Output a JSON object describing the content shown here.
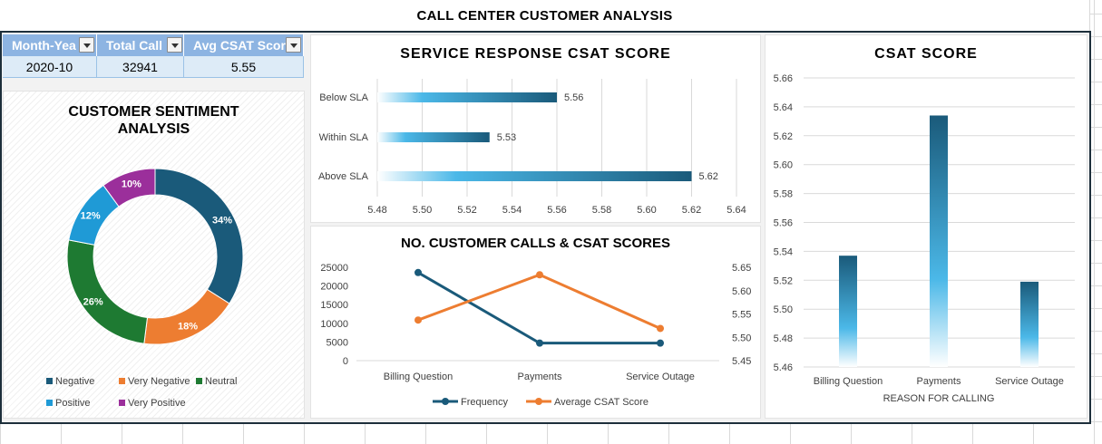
{
  "page_title": "CALL CENTER CUSTOMER ANALYSIS",
  "pivot": {
    "headers": [
      "Month-Yea",
      "Total Call",
      "Avg CSAT Scor"
    ],
    "values": [
      "2020-10",
      "32941",
      "5.55"
    ]
  },
  "colors": {
    "dark_blue": "#1a5a7a",
    "light_blue": "#3ab0e2",
    "orange": "#ed7d31",
    "green": "#1e7a32",
    "purple": "#9b2f9b",
    "frame": "#1d2f3b"
  },
  "chart_data": [
    {
      "type": "pie",
      "title": "CUSTOMER SENTIMENT ANALYSIS",
      "title_lines": [
        "CUSTOMER SENTIMENT",
        "ANALYSIS"
      ],
      "donut": true,
      "slices": [
        {
          "name": "Negative",
          "value": 34,
          "label": "34%",
          "color": "#1a5a7a"
        },
        {
          "name": "Very Negative",
          "value": 18,
          "label": "18%",
          "color": "#ed7d31"
        },
        {
          "name": "Neutral",
          "value": 26,
          "label": "26%",
          "color": "#1e7a32"
        },
        {
          "name": "Positive",
          "value": 12,
          "label": "12%",
          "color": "#1f9ad6"
        },
        {
          "name": "Very Positive",
          "value": 10,
          "label": "10%",
          "color": "#9b2f9b"
        }
      ],
      "legend": "bottom"
    },
    {
      "type": "bar",
      "orientation": "horizontal",
      "title": "SERVICE RESPONSE CSAT SCORE",
      "categories": [
        "Below SLA",
        "Within SLA",
        "Above SLA"
      ],
      "values": [
        5.56,
        5.53,
        5.62
      ],
      "data_labels": [
        "5.56",
        "5.53",
        "5.62"
      ],
      "xlim": [
        5.48,
        5.64
      ],
      "xticks": [
        "5.48",
        "5.50",
        "5.52",
        "5.54",
        "5.56",
        "5.58",
        "5.60",
        "5.62",
        "5.64"
      ],
      "grid": true
    },
    {
      "type": "line",
      "title": "NO. CUSTOMER CALLS & CSAT SCORES",
      "categories": [
        "Billing Question",
        "Payments",
        "Service Outage"
      ],
      "series": [
        {
          "name": "Frequency",
          "axis": "left",
          "values": [
            23600,
            4700,
            4700
          ],
          "color": "#1a5a7a"
        },
        {
          "name": "Average CSAT Score",
          "axis": "right",
          "values": [
            5.537,
            5.634,
            5.519
          ],
          "color": "#ed7d31"
        }
      ],
      "y_left_lim": [
        0,
        25000
      ],
      "y_left_ticks": [
        "25000",
        "20000",
        "15000",
        "10000",
        "5000",
        "0"
      ],
      "y_right_lim": [
        5.45,
        5.65
      ],
      "y_right_ticks": [
        "5.65",
        "5.60",
        "5.55",
        "5.50",
        "5.45"
      ],
      "legend": "bottom"
    },
    {
      "type": "bar",
      "title": "CSAT SCORE",
      "categories": [
        "Billing Question",
        "Payments",
        "Service Outage"
      ],
      "values": [
        5.537,
        5.634,
        5.519
      ],
      "ylim": [
        5.46,
        5.66
      ],
      "yticks": [
        "5.66",
        "5.64",
        "5.62",
        "5.60",
        "5.58",
        "5.56",
        "5.54",
        "5.52",
        "5.50",
        "5.48",
        "5.46"
      ],
      "xlabel": "REASON FOR CALLING",
      "grid": true
    }
  ]
}
